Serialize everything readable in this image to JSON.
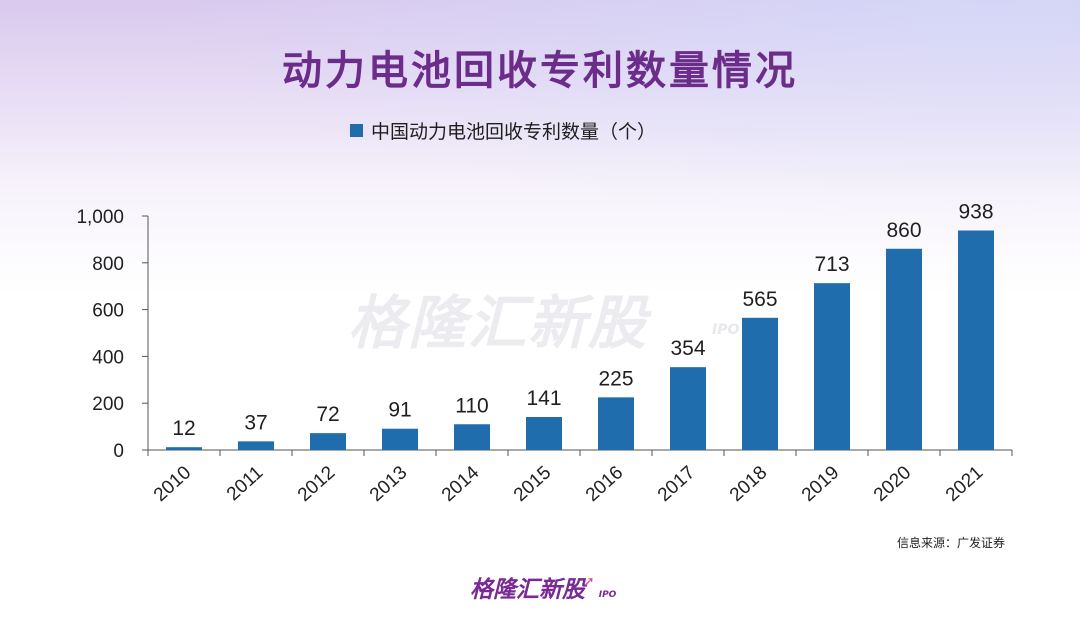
{
  "title": "动力电池回收专利数量情况",
  "legend_label": "中国动力电池回收专利数量（个）",
  "watermark": "格隆汇新股",
  "watermark_sub": "IPO",
  "source": "信息来源：广发证券",
  "brand": {
    "name": "格隆汇新股",
    "sub": "IPO"
  },
  "colors": {
    "bar": "#1f6dad",
    "title": "#6b2c8a",
    "brand": "#7a2a94"
  },
  "chart_data": {
    "type": "bar",
    "title": "动力电池回收专利数量情况",
    "categories": [
      "2010",
      "2011",
      "2012",
      "2013",
      "2014",
      "2015",
      "2016",
      "2017",
      "2018",
      "2019",
      "2020",
      "2021"
    ],
    "series": [
      {
        "name": "中国动力电池回收专利数量（个）",
        "values": [
          12,
          37,
          72,
          91,
          110,
          141,
          225,
          354,
          565,
          713,
          860,
          938
        ]
      }
    ],
    "data_labels": [
      "12",
      "37",
      "72",
      "91",
      "110",
      "141",
      "225",
      "354",
      "565",
      "713",
      "860",
      "938"
    ],
    "yticks": [
      0,
      200,
      400,
      600,
      800,
      1000
    ],
    "ytick_labels": [
      "0",
      "200",
      "400",
      "600",
      "800",
      "1,000"
    ],
    "ylim": [
      0,
      1000
    ],
    "xlabel": "",
    "ylabel": "",
    "grid": false,
    "legend": "top"
  }
}
